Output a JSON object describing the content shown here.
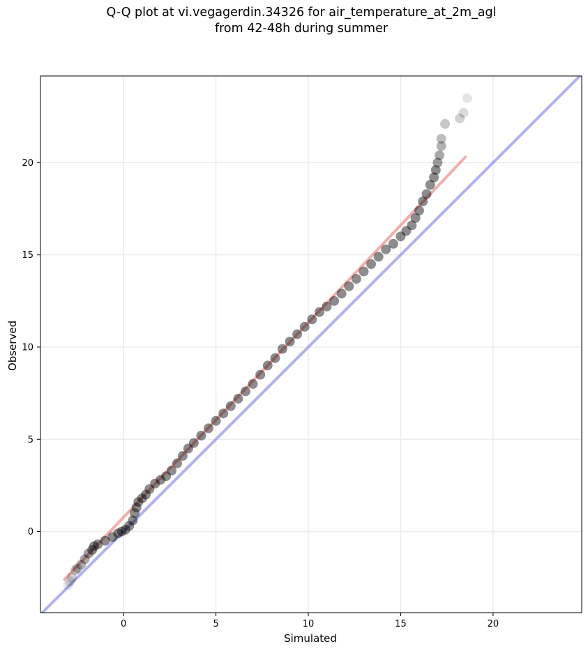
{
  "title_line1": "Q-Q plot at vi.vegagerdin.34326 for air_temperature_at_2m_agl",
  "title_line2": "from 42-48h during summer",
  "chart_data": {
    "type": "scatter",
    "title": "Q-Q plot at vi.vegagerdin.34326 for air_temperature_at_2m_agl from 42-48h during summer",
    "xlabel": "Simulated",
    "ylabel": "Observed",
    "xlim": [
      -4.5,
      24.8
    ],
    "ylim": [
      -4.4,
      24.7
    ],
    "xticks": [
      0,
      5,
      10,
      15,
      20
    ],
    "yticks": [
      0,
      5,
      10,
      15,
      20
    ],
    "grid": true,
    "colors": {
      "points": "#000000",
      "identity_line": "#7b7bf0",
      "fit_line": "#f08080",
      "grid": "#ebebeb"
    },
    "series": [
      {
        "type": "scatter",
        "points": [
          [
            -3.0,
            -2.9
          ],
          [
            -2.9,
            -2.7
          ],
          [
            -2.8,
            -2.5
          ],
          [
            -2.6,
            -2.1
          ],
          [
            -2.5,
            -2.0
          ],
          [
            -2.3,
            -1.8
          ],
          [
            -2.1,
            -1.5
          ],
          [
            -1.9,
            -1.2
          ],
          [
            -1.7,
            -1.0
          ],
          [
            -1.6,
            -0.8
          ],
          [
            -1.4,
            -0.7
          ],
          [
            -1.0,
            -0.5
          ],
          [
            -0.6,
            -0.3
          ],
          [
            -0.3,
            -0.1
          ],
          [
            -0.1,
            0.0
          ],
          [
            0.1,
            0.1
          ],
          [
            0.3,
            0.3
          ],
          [
            0.5,
            0.6
          ],
          [
            0.6,
            1.0
          ],
          [
            0.7,
            1.3
          ],
          [
            0.8,
            1.6
          ],
          [
            1.0,
            1.8
          ],
          [
            1.2,
            2.0
          ],
          [
            1.4,
            2.3
          ],
          [
            1.7,
            2.6
          ],
          [
            2.0,
            2.8
          ],
          [
            2.3,
            3.0
          ],
          [
            2.6,
            3.3
          ],
          [
            2.9,
            3.7
          ],
          [
            3.2,
            4.1
          ],
          [
            3.5,
            4.5
          ],
          [
            3.8,
            4.8
          ],
          [
            4.2,
            5.2
          ],
          [
            4.6,
            5.6
          ],
          [
            5.0,
            6.0
          ],
          [
            5.4,
            6.4
          ],
          [
            5.8,
            6.8
          ],
          [
            6.2,
            7.2
          ],
          [
            6.6,
            7.6
          ],
          [
            7.0,
            8.0
          ],
          [
            7.4,
            8.5
          ],
          [
            7.8,
            9.0
          ],
          [
            8.2,
            9.4
          ],
          [
            8.6,
            9.9
          ],
          [
            9.0,
            10.3
          ],
          [
            9.4,
            10.7
          ],
          [
            9.8,
            11.1
          ],
          [
            10.2,
            11.5
          ],
          [
            10.6,
            11.9
          ],
          [
            11.0,
            12.2
          ],
          [
            11.4,
            12.5
          ],
          [
            11.8,
            12.9
          ],
          [
            12.2,
            13.3
          ],
          [
            12.6,
            13.7
          ],
          [
            13.0,
            14.1
          ],
          [
            13.4,
            14.5
          ],
          [
            13.8,
            14.9
          ],
          [
            14.2,
            15.3
          ],
          [
            14.6,
            15.6
          ],
          [
            15.0,
            16.0
          ],
          [
            15.3,
            16.3
          ],
          [
            15.6,
            16.6
          ],
          [
            15.8,
            17.0
          ],
          [
            16.0,
            17.4
          ],
          [
            16.2,
            17.9
          ],
          [
            16.4,
            18.3
          ],
          [
            16.6,
            18.8
          ],
          [
            16.8,
            19.2
          ],
          [
            16.9,
            19.6
          ],
          [
            17.0,
            20.0
          ],
          [
            17.1,
            20.4
          ],
          [
            17.2,
            20.9
          ],
          [
            17.2,
            21.3
          ],
          [
            17.4,
            22.1
          ],
          [
            18.2,
            22.4
          ],
          [
            18.4,
            22.7
          ],
          [
            18.6,
            23.5
          ]
        ]
      },
      {
        "type": "line",
        "name": "",
        "x": [
          -4.5,
          24.8
        ],
        "y": [
          -4.5,
          24.8
        ]
      },
      {
        "type": "line",
        "name": "",
        "x": [
          -3.2,
          18.5
        ],
        "y": [
          -2.6,
          20.3
        ]
      }
    ]
  }
}
